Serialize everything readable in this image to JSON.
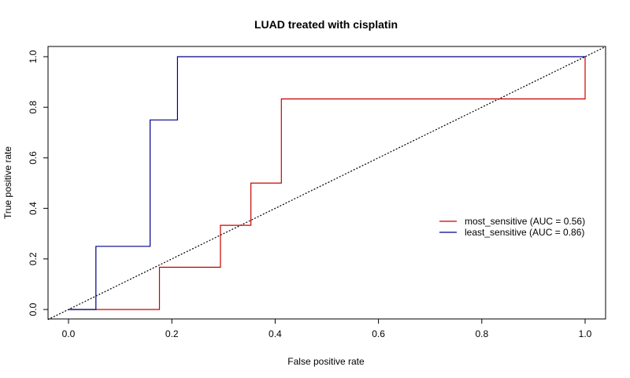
{
  "chart_data": {
    "type": "line",
    "title": "LUAD treated with cisplatin",
    "xlabel": "False positive rate",
    "ylabel": "True positive rate",
    "xlim": [
      0,
      1
    ],
    "ylim": [
      0,
      1
    ],
    "x_ticks": [
      "0.0",
      "0.2",
      "0.4",
      "0.6",
      "0.8",
      "1.0"
    ],
    "y_ticks": [
      "0.0",
      "0.2",
      "0.4",
      "0.6",
      "0.8",
      "1.0"
    ],
    "grid": false,
    "legend_position": "right",
    "reference_line": {
      "style": "dotted",
      "color": "#000000",
      "from": [
        0,
        0
      ],
      "to": [
        1,
        1
      ]
    },
    "series": [
      {
        "name": "most_sensitive (AUC = 0.56)",
        "color": "#cc0000",
        "style": "step",
        "x": [
          0,
          0.176,
          0.176,
          0.294,
          0.294,
          0.353,
          0.353,
          0.412,
          0.412,
          1.0,
          1.0
        ],
        "y": [
          0,
          0,
          0.167,
          0.167,
          0.333,
          0.333,
          0.5,
          0.5,
          0.833,
          0.833,
          1.0
        ]
      },
      {
        "name": "least_sensitive (AUC = 0.86)",
        "color": "#00008b",
        "style": "step",
        "x": [
          0,
          0.053,
          0.053,
          0.158,
          0.158,
          0.211,
          0.211,
          1.0
        ],
        "y": [
          0,
          0,
          0.25,
          0.25,
          0.75,
          0.75,
          1.0,
          1.0
        ]
      }
    ]
  }
}
